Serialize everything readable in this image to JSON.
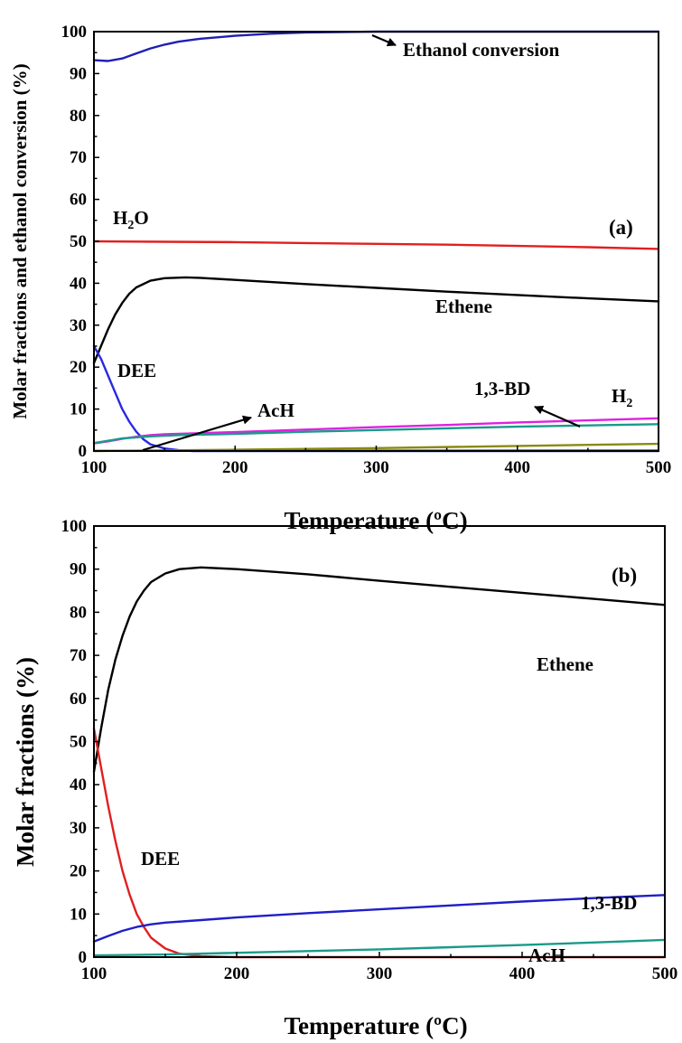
{
  "chart_data": [
    {
      "panel": "(a)",
      "type": "line",
      "xlabel": "Temperature (ºC)",
      "ylabel": "Molar fractions and ethanol conversion (%)",
      "xlim": [
        100,
        500
      ],
      "ylim": [
        0,
        100
      ],
      "xticks": [
        100,
        200,
        300,
        400,
        500
      ],
      "yticks": [
        0,
        10,
        20,
        30,
        40,
        50,
        60,
        70,
        80,
        90,
        100
      ],
      "grid": false,
      "series": [
        {
          "name": "Ethanol conversion",
          "color": "#1f1fb4",
          "points": [
            [
              100,
              93.2
            ],
            [
              110,
              93.0
            ],
            [
              120,
              93.6
            ],
            [
              130,
              94.8
            ],
            [
              140,
              96.0
            ],
            [
              150,
              96.9
            ],
            [
              160,
              97.6
            ],
            [
              175,
              98.3
            ],
            [
              200,
              99.0
            ],
            [
              225,
              99.5
            ],
            [
              250,
              99.8
            ],
            [
              300,
              100
            ],
            [
              400,
              100
            ],
            [
              500,
              100
            ]
          ]
        },
        {
          "name": "H2O",
          "color": "#e02020",
          "points": [
            [
              100,
              50.0
            ],
            [
              150,
              49.9
            ],
            [
              200,
              49.8
            ],
            [
              250,
              49.6
            ],
            [
              300,
              49.4
            ],
            [
              350,
              49.2
            ],
            [
              400,
              48.9
            ],
            [
              450,
              48.6
            ],
            [
              500,
              48.2
            ]
          ]
        },
        {
          "name": "Ethene",
          "color": "#000000",
          "points": [
            [
              100,
              21.0
            ],
            [
              105,
              25.0
            ],
            [
              110,
              29.0
            ],
            [
              115,
              32.5
            ],
            [
              120,
              35.3
            ],
            [
              125,
              37.5
            ],
            [
              130,
              39.0
            ],
            [
              140,
              40.6
            ],
            [
              150,
              41.2
            ],
            [
              165,
              41.4
            ],
            [
              175,
              41.3
            ],
            [
              200,
              40.8
            ],
            [
              250,
              39.8
            ],
            [
              300,
              38.9
            ],
            [
              350,
              38.0
            ],
            [
              400,
              37.2
            ],
            [
              450,
              36.4
            ],
            [
              500,
              35.7
            ]
          ]
        },
        {
          "name": "DEE",
          "color": "#2a2ae0",
          "points": [
            [
              100,
              25.0
            ],
            [
              105,
              22.0
            ],
            [
              110,
              18.0
            ],
            [
              115,
              14.0
            ],
            [
              120,
              10.0
            ],
            [
              125,
              7.0
            ],
            [
              130,
              4.6
            ],
            [
              135,
              2.8
            ],
            [
              140,
              1.6
            ],
            [
              150,
              0.6
            ],
            [
              160,
              0.2
            ],
            [
              170,
              0.0
            ],
            [
              500,
              0.0
            ]
          ]
        },
        {
          "name": "H2",
          "color": "#e020e0",
          "points": [
            [
              100,
              1.8
            ],
            [
              110,
              2.3
            ],
            [
              120,
              2.9
            ],
            [
              130,
              3.4
            ],
            [
              140,
              3.8
            ],
            [
              150,
              4.0
            ],
            [
              200,
              4.5
            ],
            [
              250,
              5.1
            ],
            [
              300,
              5.7
            ],
            [
              350,
              6.2
            ],
            [
              400,
              6.8
            ],
            [
              450,
              7.3
            ],
            [
              500,
              7.8
            ]
          ]
        },
        {
          "name": "1,3-BD",
          "color": "#1a9a8a",
          "points": [
            [
              100,
              1.9
            ],
            [
              120,
              3.0
            ],
            [
              140,
              3.5
            ],
            [
              160,
              3.8
            ],
            [
              200,
              4.1
            ],
            [
              250,
              4.6
            ],
            [
              300,
              5.0
            ],
            [
              350,
              5.4
            ],
            [
              400,
              5.8
            ],
            [
              450,
              6.1
            ],
            [
              500,
              6.4
            ]
          ]
        },
        {
          "name": "AcH",
          "color": "#8a8a10",
          "points": [
            [
              100,
              0.0
            ],
            [
              200,
              0.3
            ],
            [
              300,
              0.7
            ],
            [
              400,
              1.2
            ],
            [
              500,
              1.7
            ]
          ]
        },
        {
          "name": "",
          "color": "#20a020",
          "points": [
            [
              100,
              0.05
            ],
            [
              300,
              0.1
            ],
            [
              500,
              0.15
            ]
          ]
        }
      ],
      "annotations": {
        "panel_label": "(a)",
        "ethanol": "Ethanol conversion",
        "h2o": "H",
        "h2o_sub": "2",
        "h2o_tail": "O",
        "ethene": "Ethene",
        "dee": "DEE",
        "bd": "1,3-BD",
        "h2": "H",
        "h2_sub": "2",
        "ach": "AcH"
      }
    },
    {
      "panel": "(b)",
      "type": "line",
      "xlabel": "Temperature (ºC)",
      "ylabel": "Molar fractions (%)",
      "xlim": [
        100,
        500
      ],
      "ylim": [
        0,
        100
      ],
      "xticks": [
        100,
        200,
        300,
        400,
        500
      ],
      "yticks": [
        0,
        10,
        20,
        30,
        40,
        50,
        60,
        70,
        80,
        90,
        100
      ],
      "grid": false,
      "series": [
        {
          "name": "Ethene",
          "color": "#000000",
          "points": [
            [
              100,
              43.0
            ],
            [
              105,
              53.0
            ],
            [
              110,
              62.0
            ],
            [
              115,
              69.0
            ],
            [
              120,
              74.5
            ],
            [
              125,
              79.0
            ],
            [
              130,
              82.5
            ],
            [
              135,
              85.0
            ],
            [
              140,
              87.0
            ],
            [
              150,
              89.0
            ],
            [
              160,
              90.0
            ],
            [
              175,
              90.4
            ],
            [
              200,
              90.0
            ],
            [
              250,
              88.8
            ],
            [
              300,
              87.3
            ],
            [
              350,
              85.9
            ],
            [
              400,
              84.5
            ],
            [
              450,
              83.1
            ],
            [
              500,
              81.7
            ]
          ]
        },
        {
          "name": "DEE",
          "color": "#e02020",
          "points": [
            [
              100,
              53.0
            ],
            [
              105,
              44.0
            ],
            [
              110,
              35.0
            ],
            [
              115,
              27.0
            ],
            [
              120,
              20.0
            ],
            [
              125,
              14.5
            ],
            [
              130,
              10.0
            ],
            [
              135,
              7.0
            ],
            [
              140,
              4.5
            ],
            [
              150,
              2.0
            ],
            [
              160,
              0.8
            ],
            [
              175,
              0.2
            ],
            [
              200,
              0.0
            ],
            [
              500,
              0.0
            ]
          ]
        },
        {
          "name": "1,3-BD",
          "color": "#1f1fc8",
          "points": [
            [
              100,
              3.6
            ],
            [
              110,
              4.9
            ],
            [
              120,
              6.1
            ],
            [
              130,
              7.0
            ],
            [
              140,
              7.6
            ],
            [
              150,
              8.0
            ],
            [
              175,
              8.6
            ],
            [
              200,
              9.2
            ],
            [
              250,
              10.2
            ],
            [
              300,
              11.1
            ],
            [
              350,
              12.0
            ],
            [
              400,
              12.9
            ],
            [
              450,
              13.7
            ],
            [
              500,
              14.4
            ]
          ]
        },
        {
          "name": "AcH",
          "color": "#1a9a8a",
          "points": [
            [
              100,
              0.4
            ],
            [
              150,
              0.6
            ],
            [
              200,
              1.0
            ],
            [
              250,
              1.4
            ],
            [
              300,
              1.8
            ],
            [
              350,
              2.3
            ],
            [
              400,
              2.8
            ],
            [
              450,
              3.4
            ],
            [
              500,
              4.0
            ]
          ]
        }
      ],
      "annotations": {
        "panel_label": "(b)",
        "ethene": "Ethene",
        "dee": "DEE",
        "bd": "1,3-BD",
        "ach": "AcH"
      }
    }
  ]
}
